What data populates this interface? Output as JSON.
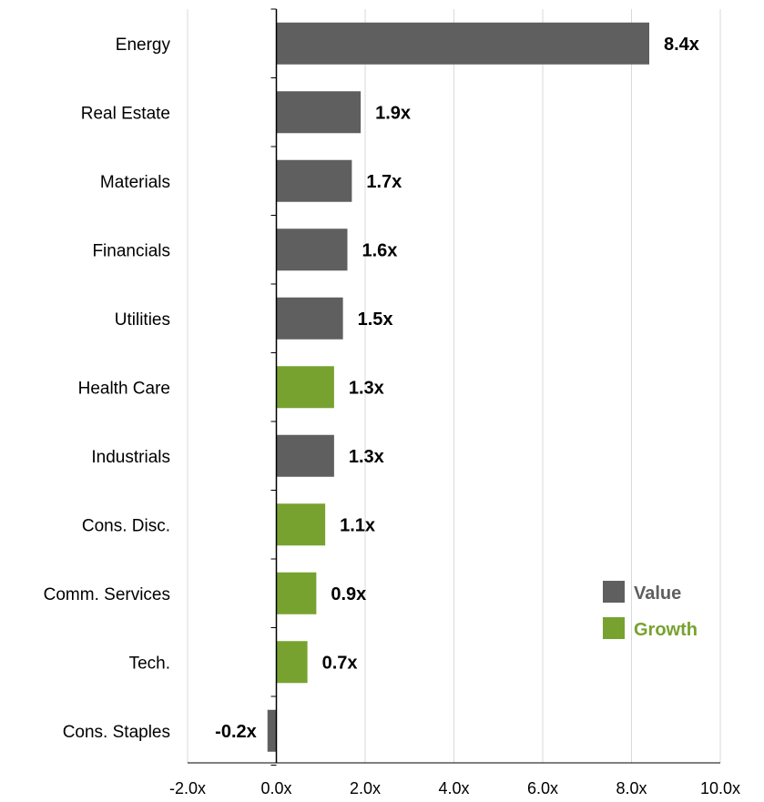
{
  "chart_data": {
    "type": "bar",
    "orientation": "horizontal",
    "categories": [
      "Energy",
      "Real Estate",
      "Materials",
      "Financials",
      "Utilities",
      "Health Care",
      "Industrials",
      "Cons. Disc.",
      "Comm. Services",
      "Tech.",
      "Cons. Staples"
    ],
    "values": [
      8.4,
      1.9,
      1.7,
      1.6,
      1.5,
      1.3,
      1.3,
      1.1,
      0.9,
      0.7,
      -0.2
    ],
    "data_labels": [
      "8.4x",
      "1.9x",
      "1.7x",
      "1.6x",
      "1.5x",
      "1.3x",
      "1.3x",
      "1.1x",
      "0.9x",
      "0.7x",
      "-0.2x"
    ],
    "groups": [
      "Value",
      "Value",
      "Value",
      "Value",
      "Value",
      "Growth",
      "Value",
      "Growth",
      "Growth",
      "Growth",
      "Value"
    ],
    "legend": [
      {
        "name": "Value",
        "color": "#5f5f5f"
      },
      {
        "name": "Growth",
        "color": "#77a22f"
      }
    ],
    "legend_position": "bottom-right",
    "xlim": [
      -2.0,
      10.0
    ],
    "xticks": [
      -2,
      0,
      2,
      4,
      6,
      8,
      10
    ],
    "xtick_labels": [
      "-2.0x",
      "0.0x",
      "2.0x",
      "4.0x",
      "6.0x",
      "8.0x",
      "10.0x"
    ],
    "grid": "vertical",
    "title": "",
    "xlabel": "",
    "ylabel": ""
  },
  "colors": {
    "value": "#5f5f5f",
    "growth": "#77a22f",
    "value_legend_text": "#5f5f5f",
    "growth_legend_text": "#77a22f",
    "grid": "#d9d9d9",
    "axis": "#000000"
  }
}
